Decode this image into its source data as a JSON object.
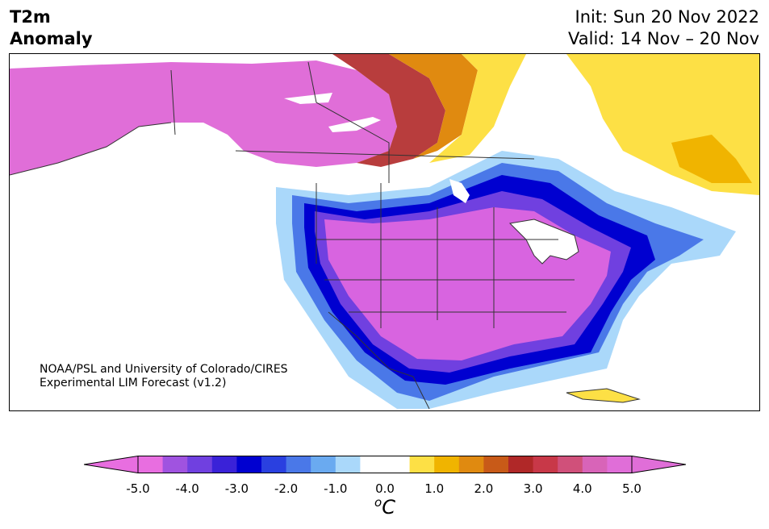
{
  "title": {
    "line1": "T2m",
    "line2": "Anomaly"
  },
  "init": "Init: Sun 20 Nov 2022",
  "valid": "Valid: 14 Nov – 20 Nov",
  "credit": {
    "line1": "NOAA/PSL and University of Colorado/CIRES",
    "line2": "Experimental LIM Forecast (v1.2)"
  },
  "colorbar": {
    "colors": [
      "#e86ee0",
      "#a053e0",
      "#7040e0",
      "#3a22d8",
      "#0000d0",
      "#2a40e0",
      "#4a78e8",
      "#6aaaf0",
      "#aad8fa",
      "#ffffff",
      "#ffffff",
      "#fde045",
      "#f0b400",
      "#e08a10",
      "#c85a18",
      "#b02828",
      "#c83848",
      "#d0507a",
      "#d864b8",
      "#e06ed8"
    ],
    "tick_labels": [
      "-5.0",
      "-4.0",
      "-3.0",
      "-2.0",
      "-1.0",
      "0.0",
      "1.0",
      "2.0",
      "3.0",
      "4.0",
      "5.0"
    ],
    "unit_main": "C",
    "unit_sup": "o"
  }
}
